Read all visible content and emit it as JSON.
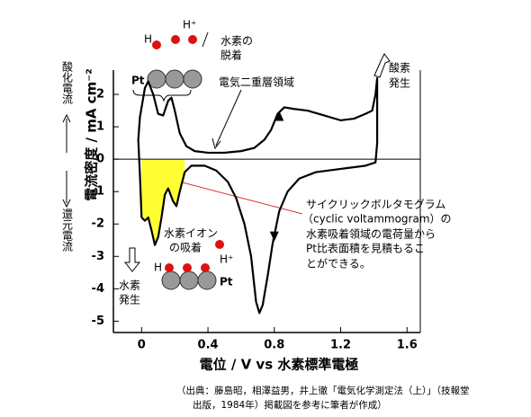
{
  "chart_data": {
    "type": "line",
    "x_label": "電位 / V vs 水素標準電極",
    "y_label": "電流密度 / mA cm⁻²",
    "oxidation_label": "酸化電流",
    "reduction_label": "還元電流",
    "annotations": {
      "double_layer": "電気二重層領域",
      "oxygen": [
        "酸素",
        "発生"
      ],
      "hydrogen_evolution": [
        "水素",
        "発生"
      ],
      "desorption": [
        "水素の",
        "脱着"
      ],
      "adsorption": [
        "水素イオン",
        "の吸着"
      ],
      "note": [
        "サイクリックボルタモグラム",
        "（cyclic voltammogram）の",
        "水素吸着領域の電荷量から",
        "Pt比表面積を見積もるこ",
        "とができる。"
      ],
      "source": [
        "（出典：藤島昭，相澤益男，井上徹「電気化学測定法（上）」（技報堂",
        "出版，1984年）掲載図を参考に筆者が作成）"
      ]
    },
    "top_icon": {
      "metal": "Pt",
      "atom": "H",
      "ion": "H⁺"
    },
    "bottom_icon": {
      "metal": "Pt",
      "atom": "H",
      "ion": "H⁺"
    },
    "series": [
      {
        "color": "#000000",
        "x": [
          0.0,
          -0.01,
          -0.02,
          -0.01,
          0.02,
          0.04,
          0.07,
          0.1,
          0.13,
          0.16,
          0.18,
          0.2,
          0.23,
          0.27,
          0.32,
          0.4,
          0.5,
          0.6,
          0.68,
          0.74,
          0.78,
          0.82,
          0.86,
          0.92,
          1.0,
          1.1,
          1.2,
          1.28,
          1.35,
          1.39,
          1.41,
          1.42,
          1.42,
          1.41,
          1.35,
          1.2,
          1.05,
          0.95,
          0.88,
          0.83,
          0.79,
          0.76,
          0.73,
          0.71,
          0.69,
          0.66,
          0.62,
          0.57,
          0.52,
          0.45,
          0.38,
          0.3,
          0.26,
          0.23,
          0.21,
          0.19,
          0.16,
          0.14,
          0.12,
          0.1,
          0.08,
          0.06,
          0.04,
          0.02,
          0.0
        ],
        "values": [
          -1.8,
          -0.5,
          0.6,
          1.3,
          2.2,
          2.4,
          2.0,
          1.4,
          1.35,
          1.8,
          1.9,
          1.5,
          0.8,
          0.4,
          0.25,
          0.2,
          0.2,
          0.25,
          0.35,
          0.6,
          0.9,
          1.4,
          1.6,
          1.55,
          1.5,
          1.35,
          1.2,
          1.25,
          1.4,
          1.5,
          2.0,
          2.5,
          0.5,
          -0.1,
          -0.2,
          -0.3,
          -0.4,
          -0.6,
          -1.0,
          -1.6,
          -2.6,
          -3.6,
          -4.5,
          -4.75,
          -4.4,
          -3.0,
          -2.0,
          -1.2,
          -0.7,
          -0.35,
          -0.2,
          -0.2,
          -0.4,
          -1.0,
          -1.45,
          -1.3,
          -0.9,
          -1.1,
          -1.8,
          -2.4,
          -2.65,
          -2.2,
          -1.8,
          -1.9,
          -1.8
        ]
      }
    ],
    "shade_x": [
      0,
      0.28
    ],
    "shade_color": "#ffff33",
    "zero_line": true,
    "xlim": [
      -0.17,
      1.68
    ],
    "ylim": [
      -5.35,
      2.75
    ],
    "xticks": [
      0,
      0.4,
      0.8,
      1.2,
      1.6
    ],
    "yticks": [
      -5,
      -4,
      -3,
      -2,
      -1,
      0,
      1,
      2
    ]
  }
}
